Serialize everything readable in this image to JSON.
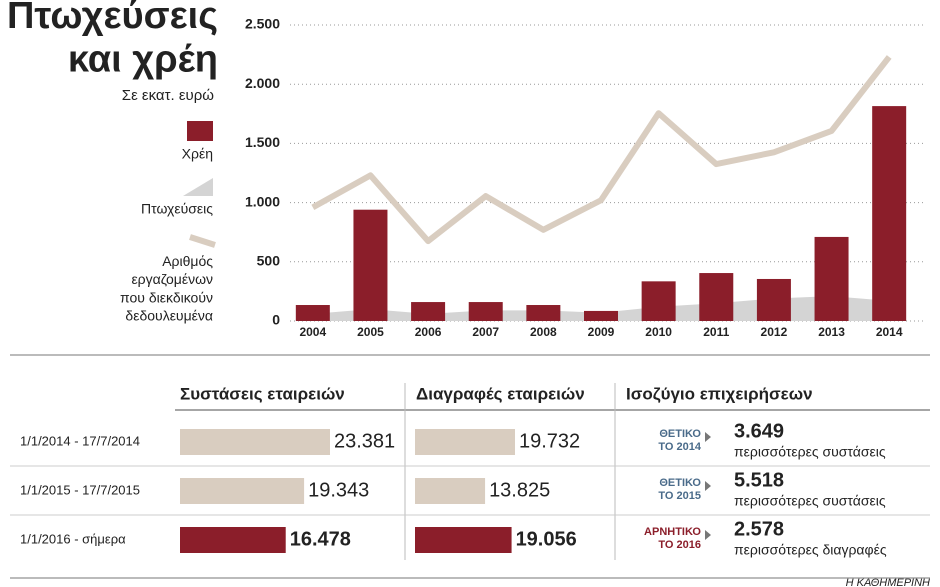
{
  "chart_data": {
    "type": "combo",
    "title": "Πτωχεύσεις\nκαι χρέη",
    "subtitle": "Σε εκατ. ευρώ",
    "categories": [
      "2004",
      "2005",
      "2006",
      "2007",
      "2008",
      "2009",
      "2010",
      "2011",
      "2012",
      "2013",
      "2014"
    ],
    "series": [
      {
        "name": "Χρέη",
        "type": "bar",
        "color": "#8b1e2a",
        "values": [
          135,
          940,
          160,
          160,
          135,
          85,
          335,
          405,
          355,
          710,
          1815
        ]
      },
      {
        "name": "Πτωχεύσεις",
        "type": "area",
        "color": "#d4d4d4",
        "values": [
          60,
          100,
          60,
          90,
          90,
          70,
          120,
          150,
          190,
          210,
          170
        ]
      },
      {
        "name": "Αριθμός\nεργαζομένων\nπου διεκδικούν\nδεδουλευμένα",
        "type": "line",
        "color": "#d9cdc0",
        "values": [
          960,
          1230,
          675,
          1055,
          770,
          1020,
          1755,
          1325,
          1425,
          1605,
          2230
        ]
      }
    ],
    "ylim": [
      0,
      2500
    ],
    "yticks": [
      0,
      500,
      {
        "value": 1000,
        "label": "1.000"
      },
      {
        "value": 1500,
        "label": "1.500"
      },
      {
        "value": 2000,
        "label": "2.000"
      },
      {
        "value": 2500,
        "label": "2.500"
      }
    ],
    "grid": true
  },
  "table": {
    "columns": [
      "Συστάσεις εταιρειών",
      "Διαγραφές εταιρειών",
      "Ισοζύγιο επιχειρήσεων"
    ],
    "rows": [
      {
        "period": "1/1/2014 - 17/7/2014",
        "founded": 23381,
        "founded_label": "23.381",
        "deleted": 19732,
        "deleted_label": "19.732",
        "bar_color": "#d9cdc0",
        "badge": "ΘΕΤΙΚΟ\nΤΟ 2014",
        "badge_color": "#4a6b8a",
        "balance": "3.649",
        "balance_text": "περισσότερες συστάσεις"
      },
      {
        "period": "1/1/2015 - 17/7/2015",
        "founded": 19343,
        "founded_label": "19.343",
        "deleted": 13825,
        "deleted_label": "13.825",
        "bar_color": "#d9cdc0",
        "badge": "ΘΕΤΙΚΟ\nΤΟ 2015",
        "badge_color": "#4a6b8a",
        "balance": "5.518",
        "balance_text": "περισσότερες συστάσεις"
      },
      {
        "period": "1/1/2016 - σήμερα",
        "founded": 16478,
        "founded_label": "16.478",
        "deleted": 19056,
        "deleted_label": "19.056",
        "bar_color": "#8b1e2a",
        "badge": "ΑΡΝΗΤΙΚΟ\nΤΟ 2016",
        "badge_color": "#8b1e2a",
        "balance": "2.578",
        "balance_text": "περισσότερες διαγραφές"
      }
    ]
  },
  "credit": "Η ΚΑΘΗΜΕΡΙΝΗ"
}
